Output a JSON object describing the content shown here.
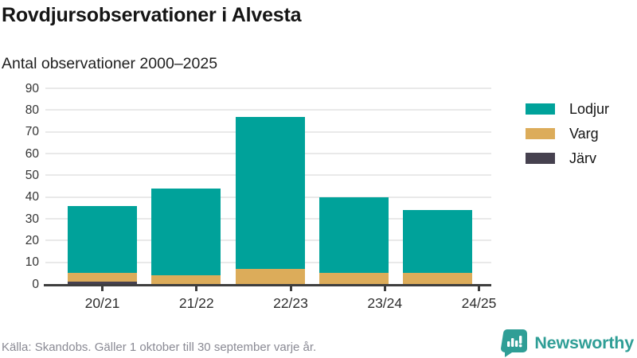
{
  "header": {
    "title": "Rovdjursobservationer i Alvesta",
    "subtitle": "Antal observationer 2000–2025"
  },
  "chart_data": {
    "type": "bar",
    "stacked": true,
    "categories": [
      "20/21",
      "21/22",
      "22/23",
      "23/24",
      "24/25"
    ],
    "series": [
      {
        "name": "Lodjur",
        "color": "#00A29A",
        "values": [
          31,
          40,
          70,
          35,
          29
        ]
      },
      {
        "name": "Varg",
        "color": "#DCAC5A",
        "values": [
          4,
          4,
          7,
          5,
          5
        ]
      },
      {
        "name": "Järv",
        "color": "#46414F",
        "values": [
          1,
          0,
          0,
          0,
          0
        ]
      }
    ],
    "totals": [
      36,
      44,
      77,
      40,
      34
    ],
    "title": "Rovdjursobservationer i Alvesta",
    "subtitle": "Antal observationer 2000–2025",
    "xlabel": "",
    "ylabel": "",
    "ylim": [
      0,
      90
    ],
    "yticks": [
      0,
      10,
      20,
      30,
      40,
      50,
      60,
      70,
      80,
      90
    ],
    "grid": true,
    "grid_color": "#E9E9E9",
    "axis_color": "#3E3E3E",
    "legend_position": "right"
  },
  "footer": {
    "source": "Källa: Skandobs. Gäller 1 oktober till 30 september varje år."
  },
  "brand": {
    "name": "Newsworthy",
    "color": "#2F9E96",
    "icon": "newsworthy-chart-bubble-icon"
  }
}
